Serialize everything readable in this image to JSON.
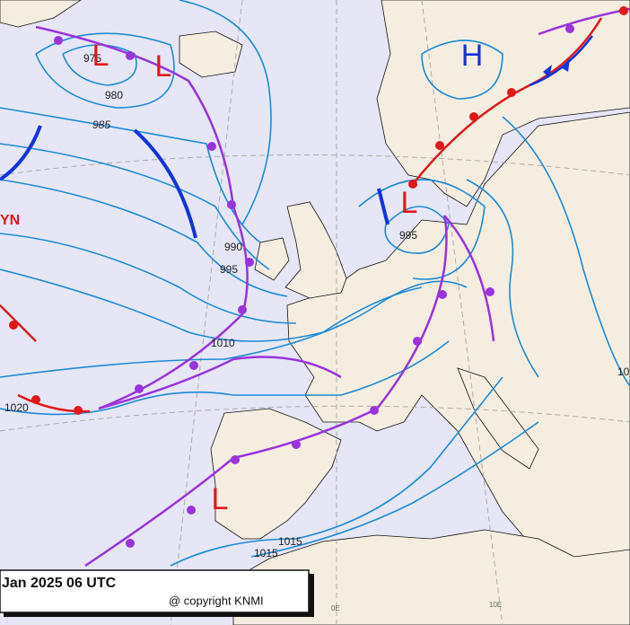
{
  "pressure_centers": [
    {
      "label": "L"
    },
    {
      "label": "L"
    },
    {
      "label": "L"
    },
    {
      "label": "L"
    },
    {
      "label": "H"
    }
  ],
  "isobar_labels": [
    "975",
    "980",
    "985",
    "990",
    "995",
    "1010",
    "1020",
    "1015",
    "1015",
    "995",
    "10"
  ],
  "system_name": "YN",
  "grid_labels": [
    "0E",
    "10E"
  ],
  "footer": {
    "date": "Jan 2025 06 UTC",
    "copyright": "@ copyright KNMI"
  }
}
